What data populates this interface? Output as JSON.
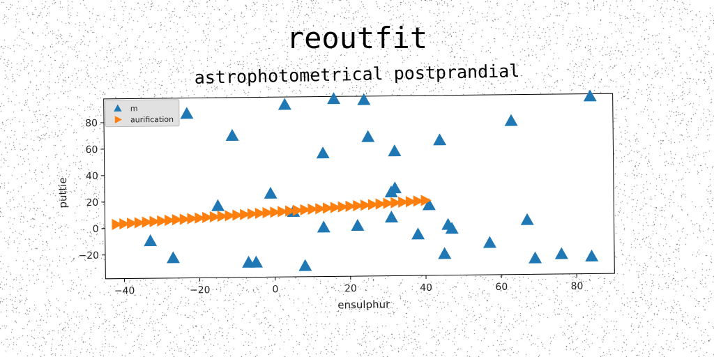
{
  "title": "reoutfit",
  "subtitle": "astrophotometrical postprandial",
  "colors": {
    "series_m": "#1f77b4",
    "series_aurification": "#ff7f0e"
  },
  "chart_data": {
    "type": "scatter",
    "xlabel": "ensulphur",
    "ylabel": "puttie",
    "xlim": [
      -45,
      90
    ],
    "ylim": [
      -38,
      98
    ],
    "xticks": [
      -40,
      -20,
      0,
      20,
      40,
      60,
      80
    ],
    "yticks": [
      -20,
      0,
      20,
      40,
      60,
      80
    ],
    "grid": false,
    "legend_position": "top-left",
    "series": [
      {
        "name": "m",
        "marker": "triangle-up",
        "x": [
          -23,
          -11,
          3,
          16,
          24,
          25,
          13,
          32,
          44,
          63,
          84,
          -15,
          -1,
          31,
          32,
          41,
          5,
          13,
          22,
          31,
          46,
          47,
          38,
          57,
          67,
          -33,
          -27,
          -7,
          -5,
          8,
          45,
          69,
          76,
          84
        ],
        "y": [
          86,
          69,
          92,
          96,
          95,
          67,
          55,
          56,
          64,
          78,
          96,
          16,
          25,
          25,
          28,
          15,
          11,
          -1,
          0,
          6,
          0,
          -3,
          -7,
          -14,
          3,
          -10,
          -23,
          -27,
          -27,
          -30,
          -22,
          -26,
          -23,
          -25
        ]
      },
      {
        "name": "aurification",
        "marker": "triangle-right",
        "x": [
          -42,
          -40,
          -38,
          -36,
          -34,
          -32,
          -30,
          -28,
          -26,
          -24,
          -22,
          -20,
          -18,
          -16,
          -14,
          -12,
          -10,
          -8,
          -6,
          -4,
          -2,
          0,
          2,
          4,
          6,
          8,
          10,
          12,
          14,
          16,
          18,
          20,
          22,
          24,
          26,
          28,
          30,
          32,
          34,
          36,
          38,
          40
        ],
        "y": [
          3.0,
          3.4,
          3.8,
          4.1,
          4.5,
          4.9,
          5.3,
          5.7,
          6.1,
          6.4,
          6.8,
          7.2,
          7.6,
          8.0,
          8.4,
          8.7,
          9.1,
          9.5,
          9.9,
          10.3,
          10.7,
          11.0,
          11.4,
          11.8,
          12.2,
          12.6,
          13.0,
          13.3,
          13.7,
          14.1,
          14.5,
          14.9,
          15.3,
          15.6,
          16.0,
          16.4,
          16.8,
          17.2,
          17.6,
          17.9,
          18.3,
          18.7
        ]
      }
    ]
  }
}
